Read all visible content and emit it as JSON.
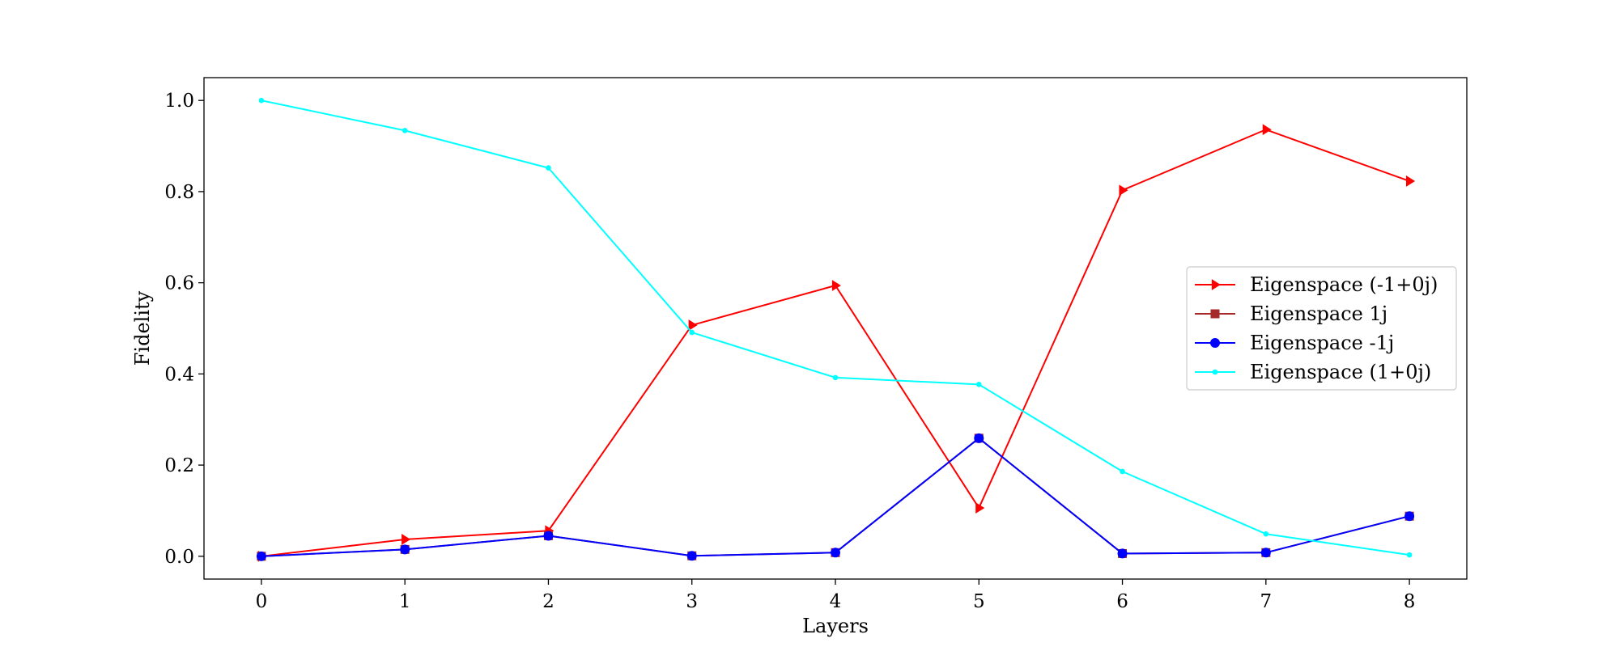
{
  "chart_data": {
    "type": "line",
    "title": "",
    "xlabel": "Layers",
    "ylabel": "Fidelity",
    "x": [
      0,
      1,
      2,
      3,
      4,
      5,
      6,
      7,
      8
    ],
    "xticks": [
      "0",
      "1",
      "2",
      "3",
      "4",
      "5",
      "6",
      "7",
      "8"
    ],
    "yticks": [
      "0.0",
      "0.2",
      "0.4",
      "0.6",
      "0.8",
      "1.0"
    ],
    "xlim": [
      -0.4,
      8.4
    ],
    "ylim": [
      -0.05,
      1.05
    ],
    "grid": false,
    "legend_position": "center-right",
    "series": [
      {
        "name": "Eigenspace (-1+0j)",
        "color": "#ff0000",
        "marker": "triangle-right",
        "values": [
          0.0,
          0.037,
          0.056,
          0.507,
          0.594,
          0.106,
          0.803,
          0.936,
          0.823
        ]
      },
      {
        "name": "Eigenspace 1j",
        "color": "#a52a2a",
        "marker": "square",
        "values": [
          0.0,
          0.015,
          0.045,
          0.001,
          0.008,
          0.259,
          0.006,
          0.008,
          0.088
        ]
      },
      {
        "name": "Eigenspace -1j",
        "color": "#0000ff",
        "marker": "circle",
        "values": [
          0.0,
          0.015,
          0.045,
          0.001,
          0.008,
          0.259,
          0.006,
          0.008,
          0.088
        ]
      },
      {
        "name": "Eigenspace (1+0j)",
        "color": "#00ffff",
        "marker": "point",
        "values": [
          1.0,
          0.934,
          0.852,
          0.491,
          0.392,
          0.377,
          0.186,
          0.049,
          0.003
        ]
      }
    ]
  }
}
